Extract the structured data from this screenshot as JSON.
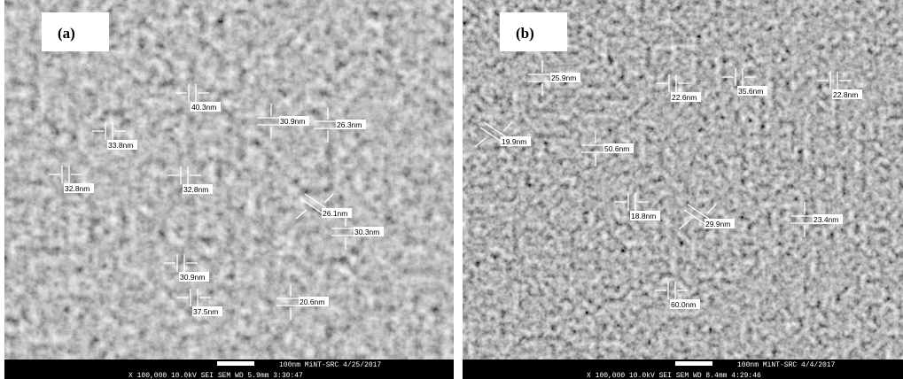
{
  "panels": [
    {
      "label": "(a)",
      "measurements": [
        "40.3nm",
        "33.8nm",
        "30.9nm",
        "26.3nm",
        "32.8nm",
        "32.8nm",
        "26.1nm",
        "30.3nm",
        "30.9nm",
        "37.5nm",
        "20.6nm"
      ],
      "footer": {
        "line1": "100nm MiNT-SRC    4/25/2017",
        "line2": "X 100,000   10.0kV SEI    SEM     WD 5.9mm  3:30:47"
      }
    },
    {
      "label": "(b)",
      "measurements": [
        "25.9nm",
        "22.6nm",
        "35.6nm",
        "22.8nm",
        "19.9nm",
        "50.6nm",
        "18.8nm",
        "29.9nm",
        "23.4nm",
        "60.0nm"
      ],
      "footer": {
        "line1": "100nm MiNT-SRC    4/4/2017",
        "line2": "X 100,000   10.0kV SEI    SEM     WD 8.4mm  4:29:46"
      }
    }
  ]
}
